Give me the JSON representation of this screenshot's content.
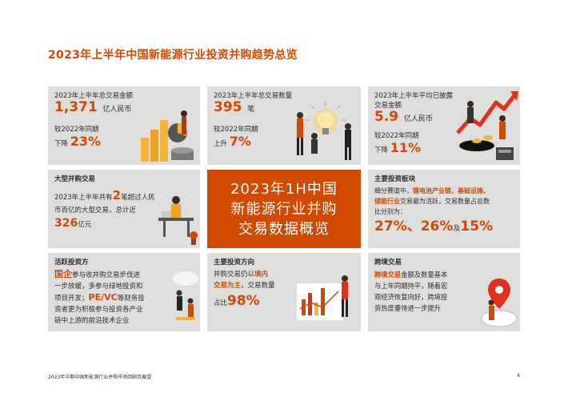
{
  "title": "2023年上半年中国新能源行业投资并购趋势总览",
  "center": {
    "lines": [
      "2023年1H中国",
      "新能源行业并购",
      "交易数据概览"
    ]
  },
  "cards": {
    "total_value": {
      "heading": "2023年上半年总交易金额",
      "value": "1,371",
      "unit": "亿人民币",
      "compare": "较2022年同期",
      "change_word": "下降",
      "change_value": "23%"
    },
    "total_count": {
      "heading": "2023年上半年总交易数量",
      "value": "395",
      "unit": "笔",
      "compare": "较2022年同期",
      "change_word": "上升",
      "change_value": "7%"
    },
    "avg_value": {
      "heading_1": "2023年上半年平均已披露",
      "heading_2": "交易金额",
      "value": "5.9",
      "unit": "亿人民币",
      "compare": "较2022年同期",
      "change_word": "下降",
      "change_value": "11%"
    },
    "large_deals": {
      "heading": "大型并购交易",
      "text_1a": "2023年上半年共有",
      "count": "2",
      "text_1b": "笔超过人民",
      "text_2": "币百亿的大型交易，总计近",
      "amount": "326",
      "amount_unit": "亿元"
    },
    "sectors": {
      "heading": "主要投资板块",
      "line_1a": "细分赛道中，",
      "line_1b": "锂电池产业链、基础设施、",
      "line_2a": "储能行业",
      "line_2b": "交易最为活跃，交易数量占总数",
      "line_3": "比分别为：",
      "pct_1": "27%",
      "sep_1": "、",
      "pct_2": "26%",
      "sep_2": "及",
      "pct_3": "15%"
    },
    "investors": {
      "heading": "活跃投资方",
      "em_1": "国企",
      "line_1": "参与收并购交易步伐进",
      "line_2": "一步放缓，多参与绿地投资和",
      "line_3a": "项目开发；",
      "em_2": "PE/VC",
      "line_3b": "等财务投",
      "line_4": "资者更为积极参与投资各产业",
      "line_5": "链中上游的前沿技术企业"
    },
    "direction": {
      "heading": "主要投资方向",
      "line_1a": "并购交易仍以",
      "em_1": "境内",
      "em_2": "交易为主",
      "line_2b": "，交易数量",
      "line_3a": "占比",
      "pct": "98%"
    },
    "crossborder": {
      "heading": "跨境交易",
      "em": "跨境交易",
      "line_1": "金额及数量基本",
      "line_2": "与上年同期持平，随着宏",
      "line_3": "观经济恢复向好，跨境投",
      "line_4": "资热度垂待进一步提升"
    }
  },
  "footer": "2023年中期中国新能源行业并购市场回顾及展望",
  "page_number": "4",
  "colors": {
    "accent": "#d04a02",
    "card_bg": "#dededc",
    "text": "#2d2d2d",
    "highlight": "#e0301e",
    "gold": "#f5b335"
  },
  "icons": [
    "coin-stack-icon",
    "people-lightbulb-icon",
    "arrow-chart-icon",
    "desk-worker-icon",
    "cloud-people-icon",
    "chart-people-icon",
    "map-pin-icon"
  ]
}
